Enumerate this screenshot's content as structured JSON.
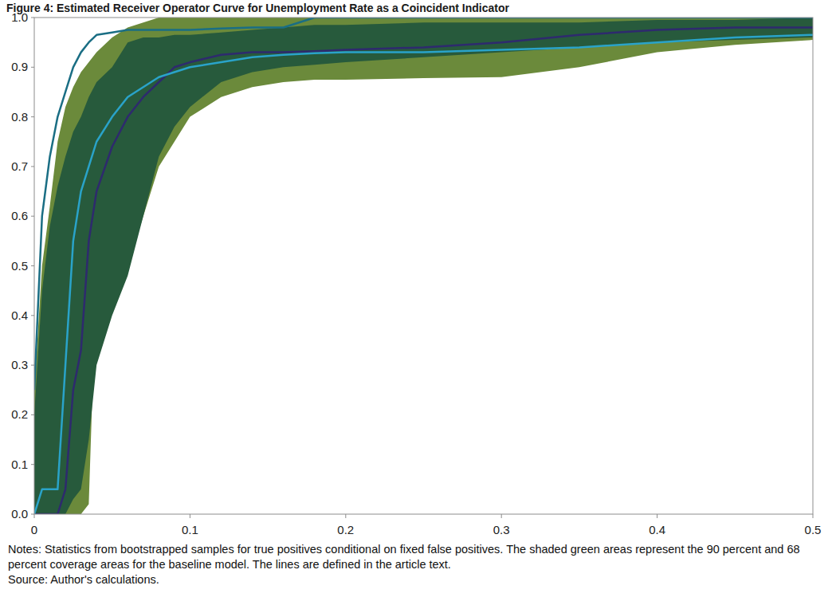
{
  "chart_data": {
    "type": "line",
    "title": "Figure 4: Estimated Receiver Operator Curve for Unemployment Rate as a Coincident Indicator",
    "notes": "Notes: Statistics from bootstrapped samples for true positives conditional on fixed false positives. The shaded green areas represent the 90 percent and 68 percent coverage areas for the baseline model. The lines are defined in the article text.",
    "source": "Source: Author's calculations.",
    "x": [
      0,
      0.005,
      0.01,
      0.015,
      0.02,
      0.025,
      0.03,
      0.035,
      0.04,
      0.05,
      0.06,
      0.07,
      0.08,
      0.09,
      0.1,
      0.12,
      0.14,
      0.16,
      0.18,
      0.2,
      0.25,
      0.3,
      0.35,
      0.4,
      0.45,
      0.5
    ],
    "series": [
      {
        "type": "band",
        "color": "#6b8a3b",
        "values": [
          0,
          0,
          0,
          0,
          0,
          0,
          0,
          0.02,
          0.5,
          0.5,
          0.5,
          0.6,
          0.7,
          0.75,
          0.8,
          0.84,
          0.86,
          0.87,
          0.875,
          0.875,
          0.878,
          0.88,
          0.9,
          0.93,
          0.945,
          0.955
        ],
        "upper": [
          0.25,
          0.5,
          0.62,
          0.75,
          0.82,
          0.86,
          0.89,
          0.91,
          0.93,
          0.96,
          0.98,
          0.99,
          1.0,
          1.0,
          1.0,
          1.0,
          1.0,
          1.0,
          1.0,
          1.0,
          1.0,
          1.0,
          1.0,
          1.0,
          1.0,
          1.0
        ]
      },
      {
        "type": "band",
        "color": "#275a3c",
        "values": [
          0,
          0,
          0,
          0,
          0,
          0.03,
          0.05,
          0.15,
          0.3,
          0.4,
          0.48,
          0.6,
          0.72,
          0.78,
          0.82,
          0.87,
          0.89,
          0.9,
          0.905,
          0.91,
          0.92,
          0.93,
          0.94,
          0.95,
          0.955,
          0.96
        ],
        "upper": [
          0.2,
          0.45,
          0.58,
          0.66,
          0.72,
          0.77,
          0.8,
          0.84,
          0.87,
          0.9,
          0.95,
          0.96,
          0.96,
          0.965,
          0.965,
          0.97,
          0.975,
          0.98,
          0.985,
          0.985,
          0.99,
          0.99,
          0.99,
          0.995,
          0.995,
          1.0
        ]
      },
      {
        "type": "line",
        "color": "#2e2a6e",
        "values": [
          0,
          0,
          0,
          0,
          0.05,
          0.25,
          0.33,
          0.55,
          0.65,
          0.74,
          0.8,
          0.84,
          0.87,
          0.9,
          0.91,
          0.925,
          0.93,
          0.93,
          0.932,
          0.935,
          0.94,
          0.95,
          0.965,
          0.975,
          0.98,
          0.98
        ]
      },
      {
        "type": "line",
        "color": "#2aa3c9",
        "values": [
          0,
          0.05,
          0.05,
          0.05,
          0.3,
          0.55,
          0.65,
          0.7,
          0.75,
          0.8,
          0.84,
          0.86,
          0.88,
          0.89,
          0.9,
          0.91,
          0.92,
          0.925,
          0.928,
          0.93,
          0.93,
          0.935,
          0.94,
          0.95,
          0.96,
          0.965
        ]
      },
      {
        "type": "line",
        "color": "#1a6e84",
        "values": [
          0.25,
          0.6,
          0.72,
          0.8,
          0.85,
          0.9,
          0.93,
          0.95,
          0.965,
          0.97,
          0.975,
          0.975,
          0.975,
          0.975,
          0.975,
          0.978,
          0.98,
          0.98,
          1.0,
          1.0,
          1.0,
          1.0,
          1.0,
          1.0,
          1.0,
          1.0
        ]
      }
    ],
    "xlim": [
      0,
      0.5
    ],
    "xticks": [
      0,
      0.1,
      0.2,
      0.3,
      0.4,
      0.5
    ],
    "ylim": [
      0,
      1
    ],
    "yticks": [
      {
        "value": 0,
        "label": "0.0"
      },
      {
        "value": 0.1,
        "label": "0.1"
      },
      {
        "value": 0.2,
        "label": "0.2"
      },
      {
        "value": 0.3,
        "label": "0.3"
      },
      {
        "value": 0.4,
        "label": "0.4"
      },
      {
        "value": 0.5,
        "label": "0.5"
      },
      {
        "value": 0.6,
        "label": "0.6"
      },
      {
        "value": 0.7,
        "label": "0.7"
      },
      {
        "value": 0.8,
        "label": "0.8"
      },
      {
        "value": 0.9,
        "label": "0.9"
      },
      {
        "value": 1,
        "label": "1.0"
      }
    ],
    "grid": false
  }
}
